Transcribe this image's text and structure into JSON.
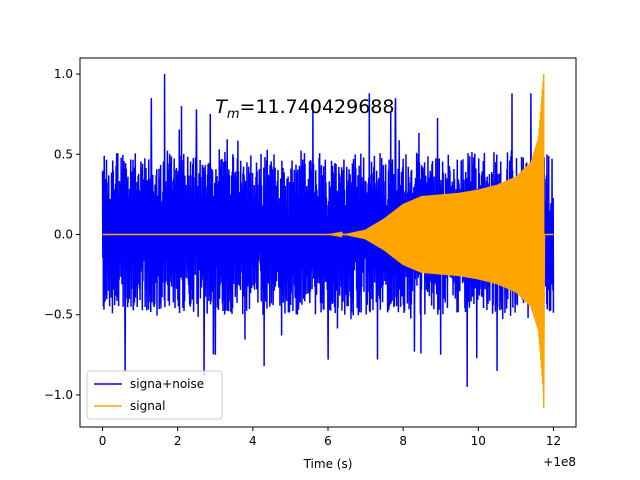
{
  "chart_data": {
    "type": "line",
    "xlabel": "Time (s)",
    "ylabel": "",
    "x_offset_label": "+1e8",
    "xlim": [
      -0.6,
      12.6
    ],
    "ylim": [
      -1.2,
      1.1
    ],
    "xticks": [
      0,
      2,
      4,
      6,
      8,
      10,
      12
    ],
    "xtick_labels": [
      "0",
      "2",
      "4",
      "6",
      "8",
      "10",
      "12"
    ],
    "yticks": [
      -1.0,
      -0.5,
      0.0,
      0.5,
      1.0
    ],
    "ytick_labels": [
      "−1.0",
      "−0.5",
      "0.0",
      "0.5",
      "1.0"
    ],
    "annotation": {
      "italic": "T",
      "subscript": "m",
      "rest": "=11.740429688",
      "x": 3.0,
      "y": 0.8
    },
    "legend_position": "lower-left",
    "grid": false,
    "series": [
      {
        "name": "signa+noise",
        "color": "#0000ff",
        "x_range": [
          0,
          12
        ],
        "noise_band": 0.35,
        "spikes": [
          {
            "x": 0.6,
            "y": -0.85
          },
          {
            "x": 1.3,
            "y": 0.85
          },
          {
            "x": 1.65,
            "y": 1.0
          },
          {
            "x": 2.1,
            "y": 0.8
          },
          {
            "x": 2.5,
            "y": 0.78
          },
          {
            "x": 2.7,
            "y": -0.88
          },
          {
            "x": 3.0,
            "y": -0.75
          },
          {
            "x": 4.3,
            "y": -0.82
          },
          {
            "x": 5.6,
            "y": 0.82
          },
          {
            "x": 6.0,
            "y": -0.78
          },
          {
            "x": 7.1,
            "y": 0.88
          },
          {
            "x": 7.8,
            "y": 0.85
          },
          {
            "x": 8.3,
            "y": -0.73
          },
          {
            "x": 9.0,
            "y": -0.75
          },
          {
            "x": 9.7,
            "y": -0.95
          },
          {
            "x": 10.5,
            "y": -0.85
          },
          {
            "x": 10.9,
            "y": 0.88
          },
          {
            "x": 11.4,
            "y": 0.88
          }
        ]
      },
      {
        "name": "signal",
        "color": "#ffa500",
        "envelope": [
          {
            "x": 0.0,
            "y": 0.0
          },
          {
            "x": 6.0,
            "y": 0.0
          },
          {
            "x": 6.5,
            "y": 0.005
          },
          {
            "x": 7.0,
            "y": 0.03
          },
          {
            "x": 7.5,
            "y": 0.1
          },
          {
            "x": 8.0,
            "y": 0.19
          },
          {
            "x": 8.5,
            "y": 0.24
          },
          {
            "x": 9.0,
            "y": 0.25
          },
          {
            "x": 9.5,
            "y": 0.26
          },
          {
            "x": 10.0,
            "y": 0.28
          },
          {
            "x": 10.5,
            "y": 0.31
          },
          {
            "x": 11.0,
            "y": 0.36
          },
          {
            "x": 11.4,
            "y": 0.45
          },
          {
            "x": 11.6,
            "y": 0.6
          },
          {
            "x": 11.74,
            "y": 1.0
          }
        ],
        "merger_min": {
          "x": 11.74,
          "y": -1.08
        },
        "tail_x": 12.0
      }
    ]
  }
}
